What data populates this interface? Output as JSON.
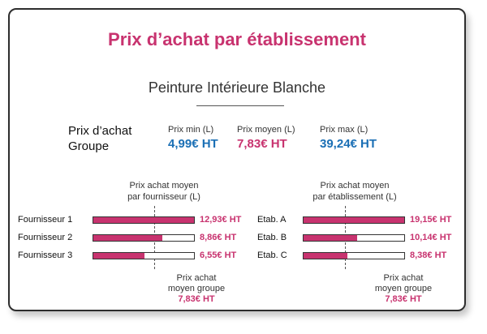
{
  "title": "Prix d’achat par établissement",
  "product": "Peinture Intérieure Blanche",
  "group": {
    "label_line1": "Prix d’achat",
    "label_line2": "Groupe",
    "stats": [
      {
        "label": "Prix min (L)",
        "value": "4,99€ HT",
        "color": "#1a6fb5"
      },
      {
        "label": "Prix moyen (L)",
        "value": "7,83€ HT",
        "color": "#c8336f"
      },
      {
        "label": "Prix max (L)",
        "value": "39,24€ HT",
        "color": "#1a6fb5"
      }
    ]
  },
  "chart_data": [
    {
      "type": "bar",
      "header_line1": "Prix achat moyen",
      "header_line2": "par fournisseur (L)",
      "categories": [
        "Fournisseur 1",
        "Fournisseur 2",
        "Fournisseur 3"
      ],
      "values": [
        12.93,
        8.86,
        6.55
      ],
      "value_labels": [
        "12,93€ HT",
        "8,86€ HT",
        "6,55€ HT"
      ],
      "reference_value": 7.83,
      "reference_label_line1": "Prix achat",
      "reference_label_line2": "moyen groupe",
      "reference_value_label": "7,83€ HT",
      "xlim": [
        0,
        12.93
      ]
    },
    {
      "type": "bar",
      "header_line1": "Prix achat moyen",
      "header_line2": "par établissement (L)",
      "categories": [
        "Etab. A",
        "Etab. B",
        "Etab. C"
      ],
      "values": [
        19.15,
        10.14,
        8.38
      ],
      "value_labels": [
        "19,15€ HT",
        "10,14€ HT",
        "8,38€ HT"
      ],
      "reference_value": 7.83,
      "reference_label_line1": "Prix achat",
      "reference_label_line2": "moyen groupe",
      "reference_value_label": "7,83€ HT",
      "xlim": [
        0,
        19.15
      ]
    }
  ],
  "colors": {
    "accent": "#c8336f",
    "blue": "#1a6fb5"
  }
}
